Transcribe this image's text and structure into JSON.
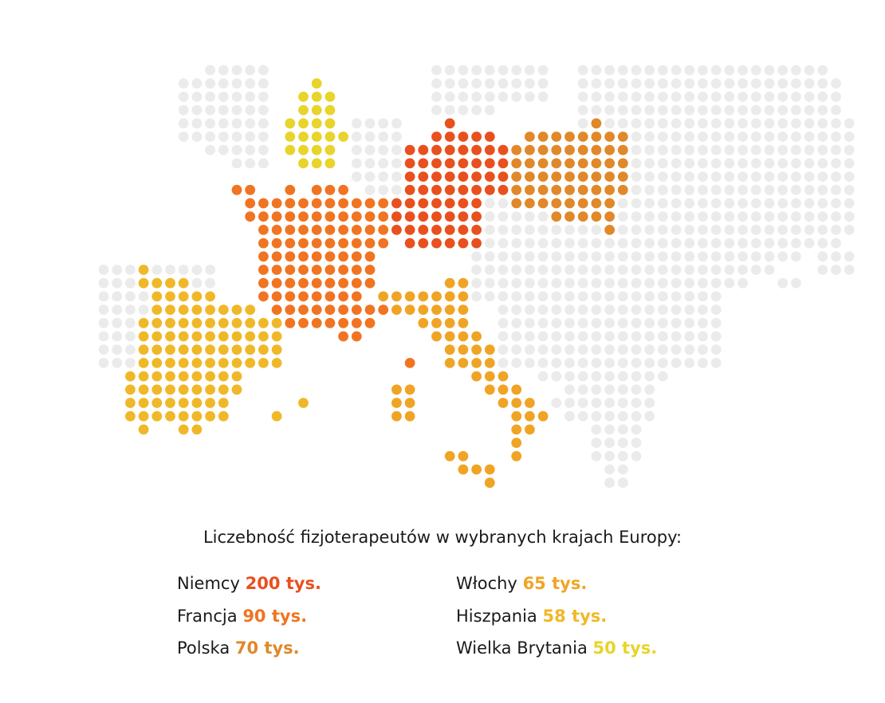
{
  "title": "Liczebność fizjoterapeutów w wybranych krajach Europy:",
  "legend": [
    {
      "country": "Niemcy",
      "value": "200 tys.",
      "color": "#e8501e"
    },
    {
      "country": "Francja",
      "value": "90 tys.",
      "color": "#f07422"
    },
    {
      "country": "Polska",
      "value": "70 tys.",
      "color": "#e0882a"
    },
    {
      "country": "Włochy",
      "value": "65 tys.",
      "color": "#f0a425"
    },
    {
      "country": "Hiszpania",
      "value": "58 tys.",
      "color": "#f0b828"
    },
    {
      "country": "Wielka Brytania",
      "value": "50 tys.",
      "color": "#e8d42a"
    }
  ]
}
